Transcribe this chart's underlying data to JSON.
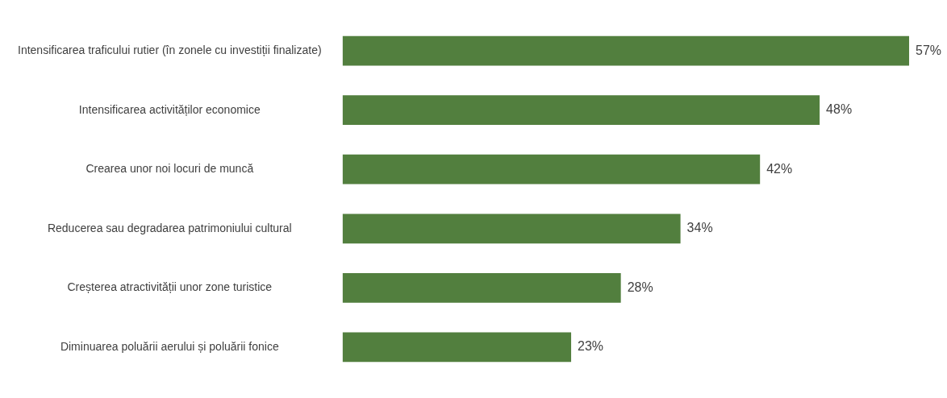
{
  "chart_data": {
    "type": "bar",
    "orientation": "horizontal",
    "categories": [
      "Intensificarea traficului rutier (în zonele cu investiții finalizate)",
      "Intensificarea activităților economice",
      "Crearea unor noi locuri de muncă",
      "Reducerea sau degradarea patrimoniului cultural",
      "Creșterea atractivității unor zone turistice",
      "Diminuarea poluării aerului și poluării fonice"
    ],
    "values": [
      57,
      48,
      42,
      34,
      28,
      23
    ],
    "value_labels": [
      "57%",
      "48%",
      "42%",
      "34%",
      "28%",
      "23%"
    ],
    "color": "#527f3e"
  }
}
